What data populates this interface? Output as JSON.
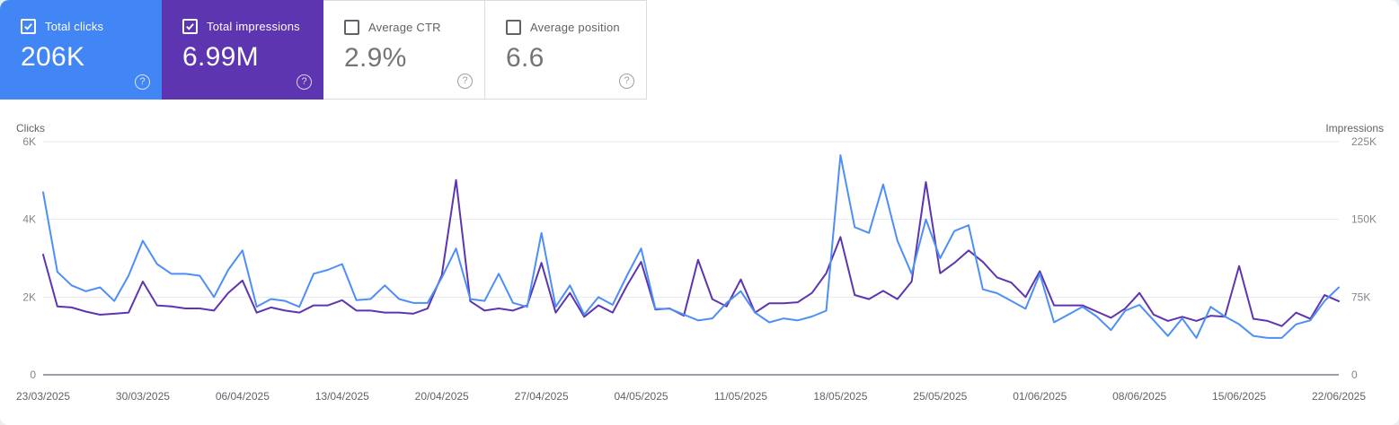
{
  "page": {
    "background": "#eceff1",
    "panel_background": "#ffffff"
  },
  "icons": {
    "help_glyph": "?",
    "checkmark_icon": "check"
  },
  "metrics": {
    "cards": [
      {
        "id": "total-clicks",
        "label": "Total clicks",
        "value": "206K",
        "checked": true,
        "background": "#4285f4"
      },
      {
        "id": "total-impressions",
        "label": "Total impressions",
        "value": "6.99M",
        "checked": true,
        "background": "#5e35b1"
      },
      {
        "id": "average-ctr",
        "label": "Average CTR",
        "value": "2.9%",
        "checked": false,
        "background": "#ffffff"
      },
      {
        "id": "average-position",
        "label": "Average position",
        "value": "6.6",
        "checked": false,
        "background": "#ffffff"
      }
    ]
  },
  "chart_data": {
    "type": "line",
    "x_axis": {
      "interval": "daily",
      "total_points": 92,
      "labels": [
        "23/03/2025",
        "30/03/2025",
        "06/04/2025",
        "13/04/2025",
        "20/04/2025",
        "27/04/2025",
        "04/05/2025",
        "11/05/2025",
        "18/05/2025",
        "25/05/2025",
        "01/06/2025",
        "08/06/2025",
        "15/06/2025",
        "22/06/2025"
      ],
      "label_every_n_days": 7
    },
    "left_axis": {
      "title": "Clicks",
      "ticks": [
        "0",
        "2K",
        "4K",
        "6K"
      ],
      "max_k": 6,
      "grid": true
    },
    "right_axis": {
      "title": "Impressions",
      "ticks": [
        "0",
        "75K",
        "150K",
        "225K"
      ],
      "max_k": 225,
      "grid": true
    },
    "style": {
      "grid_color": "#e9eaed",
      "baseline_color": "#9aa0a6",
      "tick_color": "#80868b",
      "label_color": "#5f6368",
      "line_width": 2
    },
    "series": [
      {
        "name": "Total clicks",
        "axis": "left",
        "color": "#4d8ff7",
        "unit": "thousands",
        "values_k": [
          4.7,
          2.65,
          2.3,
          2.15,
          2.25,
          1.9,
          2.55,
          3.45,
          2.85,
          2.6,
          2.6,
          2.55,
          2.0,
          2.7,
          3.2,
          1.75,
          1.95,
          1.9,
          1.75,
          2.6,
          2.7,
          2.85,
          1.92,
          1.95,
          2.3,
          1.95,
          1.85,
          1.85,
          2.5,
          3.25,
          1.95,
          1.9,
          2.6,
          1.85,
          1.75,
          3.65,
          1.75,
          2.3,
          1.55,
          2.0,
          1.8,
          2.55,
          3.25,
          1.7,
          1.7,
          1.55,
          1.4,
          1.45,
          1.85,
          2.15,
          1.6,
          1.35,
          1.45,
          1.4,
          1.5,
          1.65,
          5.65,
          3.8,
          3.65,
          4.9,
          3.45,
          2.6,
          4.0,
          3.0,
          3.7,
          3.85,
          2.2,
          2.1,
          1.9,
          1.7,
          2.6,
          1.35,
          1.55,
          1.75,
          1.5,
          1.15,
          1.65,
          1.8,
          1.4,
          1.0,
          1.45,
          0.95,
          1.75,
          1.5,
          1.3,
          1.0,
          0.95,
          0.95,
          1.3,
          1.4,
          1.9,
          2.25
        ]
      },
      {
        "name": "Total impressions",
        "axis": "right",
        "color": "#5e35b1",
        "unit": "thousands",
        "values_k": [
          116,
          66,
          65,
          61,
          58,
          59,
          60,
          90,
          67,
          66,
          64,
          64,
          62,
          79,
          91,
          60,
          65,
          62,
          60,
          67,
          67,
          72,
          62,
          62,
          60,
          60,
          59,
          64,
          96,
          188,
          71,
          62,
          64,
          62,
          67,
          108,
          60,
          79,
          56,
          67,
          60,
          86,
          109,
          63,
          64,
          57,
          111,
          73,
          66,
          92,
          60,
          69,
          69,
          70,
          79,
          98,
          133,
          77,
          73,
          81,
          73,
          90,
          186,
          98,
          108,
          120,
          109,
          94,
          89,
          75,
          100,
          67,
          67,
          67,
          61,
          55,
          64,
          79,
          58,
          52,
          56,
          52,
          57,
          56,
          105,
          54,
          52,
          47,
          60,
          54,
          77,
          71
        ]
      }
    ],
    "legend_position": "none"
  }
}
